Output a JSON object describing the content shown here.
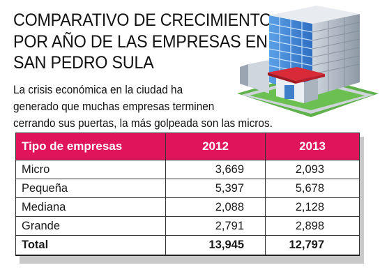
{
  "title": {
    "line1": "COMPARATIVO DE CRECIMIENTO",
    "line2": "POR AÑO DE LAS EMPRESAS EN",
    "line3": "SAN PEDRO SULA"
  },
  "subtitle": {
    "line1": "La crisis económica en la ciudad ha",
    "line2": "generado que muchas empresas terminen",
    "line3": "cerrando sus puertas, la más golpeada son las micros."
  },
  "building_icon": "office-building-icon",
  "colors": {
    "header": "#e0145a",
    "shadow": "#c9c9c9"
  },
  "chart_data": {
    "type": "table",
    "columns": [
      "Tipo de empresas",
      "2012",
      "2013"
    ],
    "rows": [
      [
        "Micro",
        "3,669",
        "2,093"
      ],
      [
        "Pequeña",
        "5,397",
        "5,678"
      ],
      [
        "Mediana",
        "2,088",
        "2,128"
      ],
      [
        "Grande",
        "2,791",
        "2,898"
      ]
    ],
    "values": {
      "2012": [
        3669,
        5397,
        2088,
        2791
      ],
      "2013": [
        2093,
        5678,
        2128,
        2898
      ]
    },
    "total": [
      "Total",
      "13,945",
      "12,797"
    ]
  }
}
